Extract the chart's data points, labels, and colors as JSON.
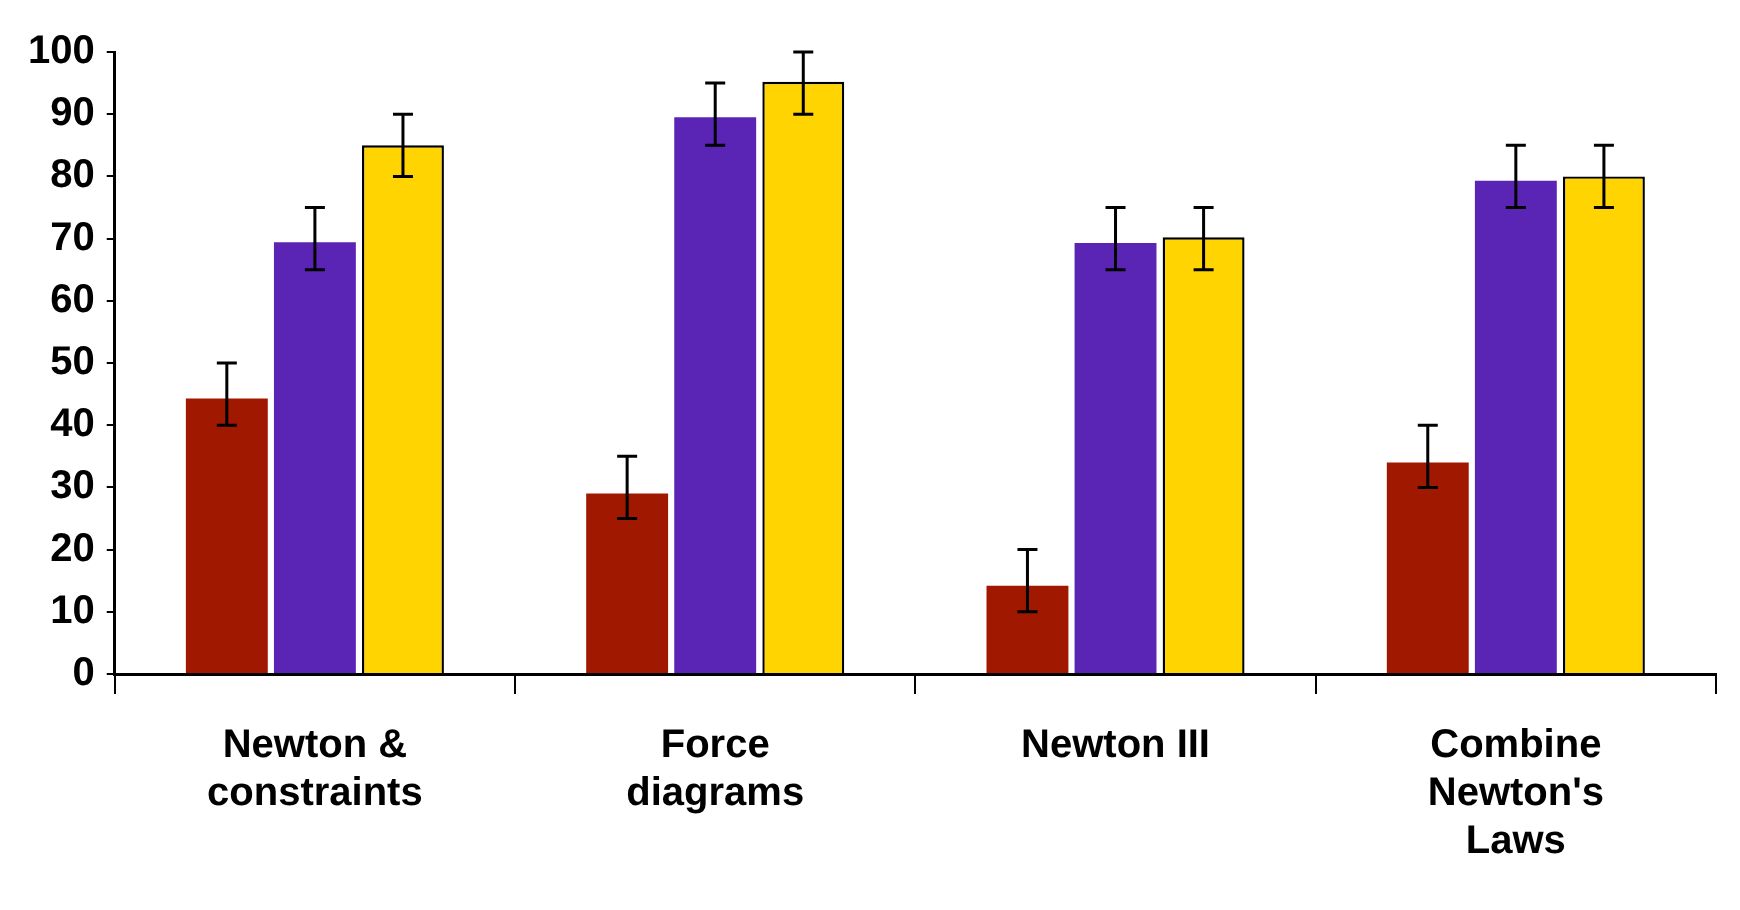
{
  "chart_data": {
    "type": "bar",
    "categories": [
      "Newton & constraints",
      "Force diagrams",
      "Newton III",
      "Combine Newton's Laws"
    ],
    "series": [
      {
        "color": "#a01800",
        "values": [
          44.3,
          29,
          14.2,
          34
        ],
        "errors": [
          [
            40,
            50
          ],
          [
            25,
            35
          ],
          [
            10,
            20
          ],
          [
            30,
            40
          ]
        ]
      },
      {
        "color": "#5a24b4",
        "values": [
          69.4,
          89.5,
          69.3,
          79.3
        ],
        "errors": [
          [
            65,
            75
          ],
          [
            85,
            95
          ],
          [
            65,
            75
          ],
          [
            75,
            85
          ]
        ]
      },
      {
        "color": "#ffd400",
        "values": [
          85,
          95.2,
          70.2,
          80
        ],
        "errors": [
          [
            80,
            90
          ],
          [
            90,
            100
          ],
          [
            65,
            75
          ],
          [
            75,
            85
          ]
        ]
      }
    ],
    "ylim": [
      0,
      100
    ],
    "yticks": [
      0,
      10,
      20,
      30,
      40,
      50,
      60,
      70,
      80,
      90,
      100
    ],
    "grid": false,
    "legend": false
  }
}
